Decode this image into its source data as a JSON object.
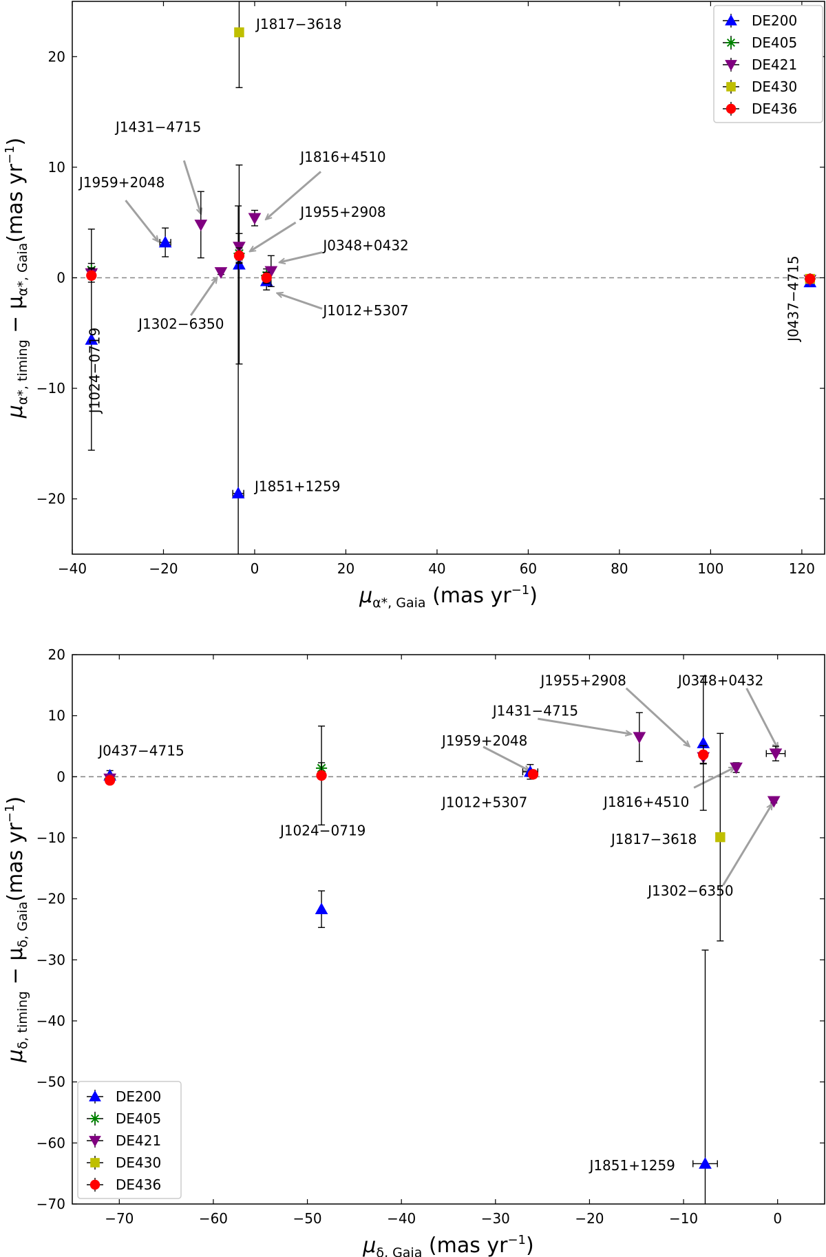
{
  "colors": {
    "DE200": "#0000ff",
    "DE405": "#008000",
    "DE421": "#800080",
    "DE430": "#bfbf00",
    "DE436": "#ff0000",
    "annotation_arrow": "#a0a0a0",
    "zero_line": "#888888"
  },
  "legend_entries": [
    "DE200",
    "DE405",
    "DE421",
    "DE430",
    "DE436"
  ],
  "chart_data": [
    {
      "type": "scatter",
      "title": "",
      "xlabel": {
        "main": "μ",
        "sub": "α*, Gaia",
        "unit": " (mas yr",
        "sup": "−1",
        "close": ")"
      },
      "ylabel": {
        "main": "μ",
        "sub1": "α*, timing",
        "mid": " − μ",
        "sub2": "α*, Gaia",
        "unit": "(mas yr",
        "sup": "−1",
        "close": ")"
      },
      "xlim": [
        -40,
        125
      ],
      "ylim": [
        -25,
        25
      ],
      "xticks": [
        -40,
        -20,
        0,
        20,
        40,
        60,
        80,
        100,
        120
      ],
      "xtick_labels": [
        "−40",
        "−20",
        "0",
        "20",
        "40",
        "60",
        "80",
        "100",
        "120"
      ],
      "yticks": [
        -20,
        -10,
        0,
        10,
        20
      ],
      "ytick_labels": [
        "−20",
        "−10",
        "0",
        "10",
        "20"
      ],
      "zero_line": true,
      "legend_position": "upper-right",
      "series": [
        {
          "name": "DE200",
          "marker": "triangle-up",
          "points": [
            {
              "x": -35.8,
              "y": -5.6,
              "yerr": 10.0
            },
            {
              "x": -19.6,
              "y": 3.2,
              "yerr": 1.3,
              "xerr": 1.2
            },
            {
              "x": -3.4,
              "y": 1.2,
              "yerr": 9.0
            },
            {
              "x": -3.6,
              "y": -19.5,
              "yerr": 26.0,
              "xerr": 1.2
            },
            {
              "x": 2.6,
              "y": -0.3,
              "yerr": 0.8
            },
            {
              "x": 121.8,
              "y": -0.4,
              "yerr": 0.4
            }
          ]
        },
        {
          "name": "DE405",
          "marker": "x-star",
          "points": [
            {
              "x": -35.8,
              "y": 0.7,
              "yerr": 0.6
            },
            {
              "x": -3.4,
              "y": 2.2,
              "yerr": 0.8
            },
            {
              "x": 2.6,
              "y": 0.2,
              "yerr": 0.6
            },
            {
              "x": 121.8,
              "y": -0.1,
              "yerr": 0.3
            }
          ]
        },
        {
          "name": "DE421",
          "marker": "triangle-down",
          "points": [
            {
              "x": -35.8,
              "y": 0.4,
              "yerr": 0.5
            },
            {
              "x": -11.8,
              "y": 4.8,
              "yerr": 3.0
            },
            {
              "x": -7.4,
              "y": 0.5,
              "yerr": 0.2
            },
            {
              "x": -3.4,
              "y": 2.8,
              "yerr": 1.2
            },
            {
              "x": 0.0,
              "y": 5.4,
              "yerr": 0.7
            },
            {
              "x": 3.6,
              "y": 0.6,
              "yerr": 1.4
            },
            {
              "x": 121.8,
              "y": -0.2,
              "yerr": 0.3
            }
          ]
        },
        {
          "name": "DE430",
          "marker": "square",
          "points": [
            {
              "x": -3.4,
              "y": 22.2,
              "yerr": 5.0
            },
            {
              "x": 121.8,
              "y": -0.1,
              "yerr": 0.3
            }
          ]
        },
        {
          "name": "DE436",
          "marker": "circle",
          "points": [
            {
              "x": -35.8,
              "y": 0.2,
              "yerr": 0.6
            },
            {
              "x": -3.4,
              "y": 2.0,
              "yerr": 0.7
            },
            {
              "x": 2.6,
              "y": 0.0,
              "yerr": 0.5
            },
            {
              "x": 121.8,
              "y": -0.1,
              "yerr": 0.3
            }
          ]
        }
      ],
      "annotations": [
        {
          "text": "J1817−3618",
          "x": 0.3,
          "y": 22.5,
          "rotate": false
        },
        {
          "text": "J1431−4715",
          "x": -30.5,
          "y": 13.2,
          "arrow_from": [
            -15.5,
            10.6
          ],
          "arrow_to": [
            -11.8,
            5.8
          ],
          "rotate": false
        },
        {
          "text": "J1959+2048",
          "x": -38.5,
          "y": 8.2,
          "arrow_from": [
            -28.3,
            7.0
          ],
          "arrow_to": [
            -21.2,
            3.3
          ],
          "rotate": false
        },
        {
          "text": "J1816+4510",
          "x": 10.0,
          "y": 10.5,
          "arrow_from": [
            14.5,
            9.6
          ],
          "arrow_to": [
            2.5,
            5.3
          ],
          "rotate": false
        },
        {
          "text": "J1955+2908",
          "x": 10.0,
          "y": 5.5,
          "arrow_from": [
            9.0,
            5.0
          ],
          "arrow_to": [
            -1.0,
            2.4
          ],
          "rotate": false
        },
        {
          "text": "J0348+0432",
          "x": 15.0,
          "y": 2.5,
          "arrow_from": [
            14.8,
            2.3
          ],
          "arrow_to": [
            5.5,
            1.4
          ],
          "rotate": false
        },
        {
          "text": "J1012+5307",
          "x": 15.0,
          "y": -3.4,
          "arrow_from": [
            14.8,
            -2.8
          ],
          "arrow_to": [
            5.0,
            -1.4
          ],
          "rotate": false
        },
        {
          "text": "J1302−6350",
          "x": -25.5,
          "y": -4.6,
          "arrow_from": [
            -14.0,
            -3.4
          ],
          "arrow_to": [
            -8.3,
            0.0
          ],
          "rotate": false
        },
        {
          "text": "J1851+1259",
          "x": 0.0,
          "y": -19.3,
          "rotate": false
        },
        {
          "text": "J1024−0719",
          "x": -34.0,
          "y": -4.5,
          "rotate": true
        },
        {
          "text": "J0437−4715",
          "x": 119.2,
          "y": 2.0,
          "rotate": true
        }
      ]
    },
    {
      "type": "scatter",
      "title": "",
      "xlabel": {
        "main": "μ",
        "sub": "δ, Gaia",
        "unit": " (mas yr",
        "sup": "−1",
        "close": ")"
      },
      "ylabel": {
        "main": "μ",
        "sub1": "δ, timing",
        "mid": " − μ",
        "sub2": "δ, Gaia",
        "unit": "(mas yr",
        "sup": "−1",
        "close": ")"
      },
      "xlim": [
        -75,
        5
      ],
      "ylim": [
        -70,
        20
      ],
      "xticks": [
        -70,
        -60,
        -50,
        -40,
        -30,
        -20,
        -10,
        0
      ],
      "xtick_labels": [
        "−70",
        "−60",
        "−50",
        "−40",
        "−30",
        "−20",
        "−10",
        "0"
      ],
      "yticks": [
        -70,
        -60,
        -50,
        -40,
        -30,
        -20,
        -10,
        0,
        10,
        20
      ],
      "ytick_labels": [
        "−70",
        "−60",
        "−50",
        "−40",
        "−30",
        "−20",
        "−10",
        "0",
        "10",
        "20"
      ],
      "zero_line": true,
      "legend_position": "lower-left",
      "series": [
        {
          "name": "DE200",
          "marker": "triangle-up",
          "points": [
            {
              "x": -71.0,
              "y": 0.2,
              "yerr": 0.8
            },
            {
              "x": -48.5,
              "y": -21.7,
              "yerr": 3.0
            },
            {
              "x": -26.3,
              "y": 0.8,
              "yerr": 1.2,
              "xerr": 0.8
            },
            {
              "x": -7.9,
              "y": 5.5,
              "yerr": 11.0
            },
            {
              "x": -7.7,
              "y": -63.4,
              "yerr": 35.0,
              "xerr": 1.3
            }
          ]
        },
        {
          "name": "DE405",
          "marker": "x-star",
          "points": [
            {
              "x": -48.5,
              "y": 1.4,
              "yerr": 0.9
            },
            {
              "x": -71.0,
              "y": -0.3,
              "yerr": 0.5
            }
          ]
        },
        {
          "name": "DE421",
          "marker": "triangle-down",
          "points": [
            {
              "x": -71.0,
              "y": -0.3,
              "yerr": 0.5
            },
            {
              "x": -14.7,
              "y": 6.5,
              "yerr": 4.0
            },
            {
              "x": -7.9,
              "y": 3.2,
              "yerr": 1.0
            },
            {
              "x": -4.4,
              "y": 1.5,
              "yerr": 0.8
            },
            {
              "x": -0.2,
              "y": 3.8,
              "yerr": 1.2,
              "xerr": 1.0
            },
            {
              "x": -0.4,
              "y": -4.0,
              "yerr": 0.3
            }
          ]
        },
        {
          "name": "DE430",
          "marker": "square",
          "points": [
            {
              "x": -6.1,
              "y": -9.9,
              "yerr": 17.0
            }
          ]
        },
        {
          "name": "DE436",
          "marker": "circle",
          "points": [
            {
              "x": -71.0,
              "y": -0.6,
              "yerr": 0.5
            },
            {
              "x": -48.5,
              "y": 0.2,
              "yerr": 8.1
            },
            {
              "x": -26.0,
              "y": 0.4,
              "yerr": 0.6
            },
            {
              "x": -7.9,
              "y": 3.6,
              "yerr": 1.5
            }
          ]
        }
      ],
      "annotations": [
        {
          "text": "J0437−4715",
          "x": -72.2,
          "y": 3.5,
          "rotate": false
        },
        {
          "text": "J1024−0719",
          "x": -52.9,
          "y": -9.6,
          "rotate": false
        },
        {
          "text": "J1959+2048",
          "x": -35.7,
          "y": 5.1,
          "arrow_from": [
            -31.3,
            4.9
          ],
          "arrow_to": [
            -26.4,
            1.0
          ],
          "rotate": false
        },
        {
          "text": "J1012+5307",
          "x": -35.7,
          "y": -5.0,
          "rotate": false
        },
        {
          "text": "J1431−4715",
          "x": -30.3,
          "y": 10.0,
          "arrow_from": [
            -25.5,
            9.5
          ],
          "arrow_to": [
            -15.6,
            7.0
          ],
          "rotate": false
        },
        {
          "text": "J1955+2908",
          "x": -25.2,
          "y": 15.0,
          "arrow_from": [
            -16.1,
            14.5
          ],
          "arrow_to": [
            -9.4,
            5.0
          ],
          "rotate": false
        },
        {
          "text": "J0348+0432",
          "x": -10.6,
          "y": 15.0,
          "arrow_from": [
            -3.3,
            14.5
          ],
          "arrow_to": [
            0.0,
            4.7
          ],
          "rotate": false
        },
        {
          "text": "J1816+4510",
          "x": -18.5,
          "y": -4.9,
          "arrow_from": [
            -8.9,
            -1.8
          ],
          "arrow_to": [
            -4.6,
            1.5
          ],
          "rotate": false
        },
        {
          "text": "J1817−3618",
          "x": -17.7,
          "y": -11.0,
          "rotate": false
        },
        {
          "text": "J1302−6350",
          "x": -13.8,
          "y": -19.5,
          "arrow_from": [
            -5.8,
            -17.8
          ],
          "arrow_to": [
            -0.6,
            -4.5
          ],
          "rotate": false
        },
        {
          "text": "J1851+1259",
          "x": -20.0,
          "y": -64.5,
          "rotate": false
        }
      ]
    }
  ]
}
